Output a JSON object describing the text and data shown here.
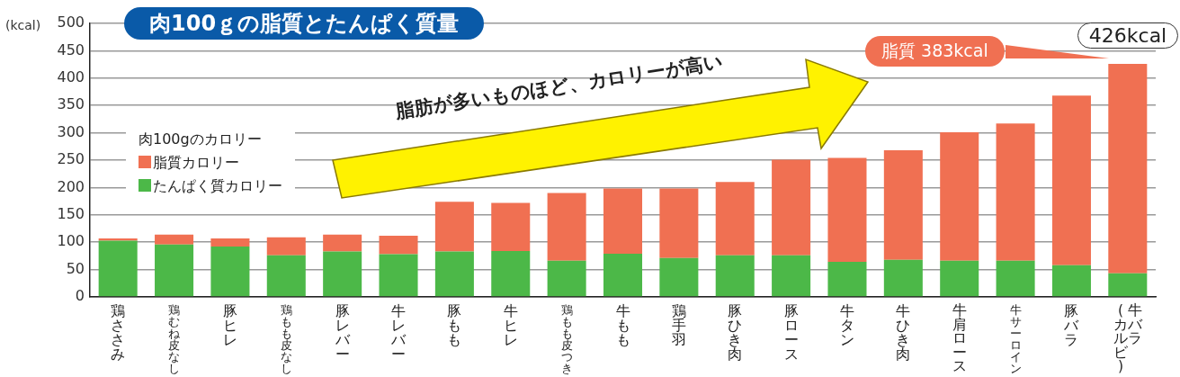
{
  "chart_data": {
    "type": "bar",
    "title": "肉100ｇの脂質とたんぱく質量",
    "ylabel": "(kcal)",
    "legend_title": "肉100gのカロリー",
    "categories": [
      "鶏ささみ",
      "鶏むね皮なし",
      "豚ヒレ",
      "鶏もも皮なし",
      "豚レバー",
      "牛レバー",
      "豚もも",
      "牛ヒレ",
      "鶏もも皮つき",
      "牛もも",
      "鶏手羽",
      "豚ひき肉",
      "豚ロース",
      "牛タン",
      "牛ひき肉",
      "牛肩ロース",
      "牛サーロイン",
      "豚バラ",
      "牛バラ\n(カルビ)"
    ],
    "stacked": true,
    "series": [
      {
        "name": "たんぱく質カロリー",
        "color": "#4cb848",
        "values": [
          103,
          96,
          92,
          76,
          83,
          78,
          83,
          84,
          66,
          79,
          71,
          76,
          76,
          64,
          68,
          66,
          66,
          58,
          43
        ]
      },
      {
        "name": "脂質カロリー",
        "color": "#f07052",
        "values": [
          4,
          18,
          15,
          33,
          31,
          34,
          91,
          88,
          124,
          119,
          127,
          134,
          175,
          190,
          200,
          235,
          251,
          310,
          383
        ]
      }
    ],
    "ylim": [
      0,
      500
    ],
    "yticks": [
      0,
      50,
      100,
      150,
      200,
      250,
      300,
      350,
      400,
      450,
      500
    ],
    "grid": "y",
    "legend": "left",
    "annotations": [
      "脂肪が多いものほど、カロリーが高い",
      "脂質 383kcal",
      {
        "text": "426kcal",
        "x": "牛バラ\n(カルビ)",
        "y": 426
      }
    ]
  }
}
